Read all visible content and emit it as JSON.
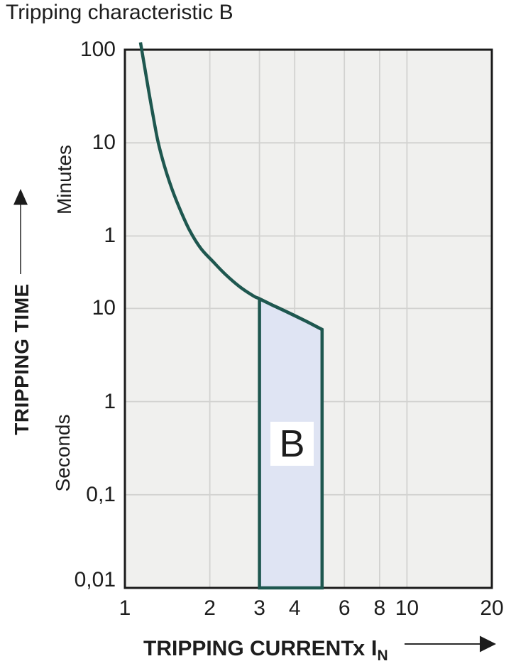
{
  "chart_data": {
    "type": "line",
    "title": "Tripping characteristic B",
    "x_axis": {
      "label": "TRIPPING CURRENT",
      "multiplier_label": "x I",
      "multiplier_subscript": "N",
      "scale": "log",
      "range": [
        1,
        20
      ],
      "ticks": [
        {
          "value": 1,
          "label": "1"
        },
        {
          "value": 2,
          "label": "2"
        },
        {
          "value": 3,
          "label": "3"
        },
        {
          "value": 4,
          "label": "4"
        },
        {
          "value": 6,
          "label": "6"
        },
        {
          "value": 8,
          "label": "8"
        },
        {
          "value": 10,
          "label": "10"
        },
        {
          "value": 20,
          "label": "20"
        }
      ],
      "gridline_values": [
        2,
        3,
        4,
        6,
        8,
        10
      ]
    },
    "y_axis": {
      "label": "TRIPPING TIME",
      "scale": "log",
      "range_seconds": [
        0.01,
        6000
      ],
      "gridline_values_seconds": [
        600,
        60,
        10,
        1,
        0.1
      ],
      "unit_sections": [
        {
          "name": "Minutes",
          "ticks": [
            {
              "seconds": 6000,
              "label": "100"
            },
            {
              "seconds": 600,
              "label": "10"
            },
            {
              "seconds": 60,
              "label": "1"
            }
          ]
        },
        {
          "name": "Seconds",
          "ticks": [
            {
              "seconds": 10,
              "label": "10"
            },
            {
              "seconds": 1,
              "label": "1"
            },
            {
              "seconds": 0.1,
              "label": "0,1"
            },
            {
              "seconds": 0.01,
              "label": "0,01"
            }
          ]
        }
      ]
    },
    "series": [
      {
        "name": "upper-tripping-limit-curve",
        "points_x_multiple_vs_t_seconds": [
          [
            1.135,
            7200
          ],
          [
            1.17,
            4200
          ],
          [
            1.21,
            2300
          ],
          [
            1.26,
            1150
          ],
          [
            1.31,
            620
          ],
          [
            1.38,
            340
          ],
          [
            1.47,
            190
          ],
          [
            1.57,
            115
          ],
          [
            1.7,
            68
          ],
          [
            1.86,
            44
          ],
          [
            2.05,
            32
          ],
          [
            2.28,
            23
          ],
          [
            2.56,
            17
          ],
          [
            2.86,
            13.6
          ],
          [
            3.0,
            12.7
          ],
          [
            3.35,
            10.8
          ],
          [
            3.75,
            9.2
          ],
          [
            4.35,
            7.4
          ],
          [
            5.0,
            5.95
          ]
        ]
      }
    ],
    "band": {
      "label": "B",
      "x_range": [
        3,
        5
      ],
      "t_top_at_x3_seconds": 12.7,
      "t_top_at_x5_seconds": 5.95,
      "t_bottom_seconds": 0.01
    },
    "colors": {
      "curve": "#1e574f",
      "band_fill": "#dfe4f3",
      "plot_background": "#f0f0ee",
      "gridline": "#d2d2d0",
      "border": "#1b1b1b",
      "text": "#1d1d1d"
    }
  }
}
